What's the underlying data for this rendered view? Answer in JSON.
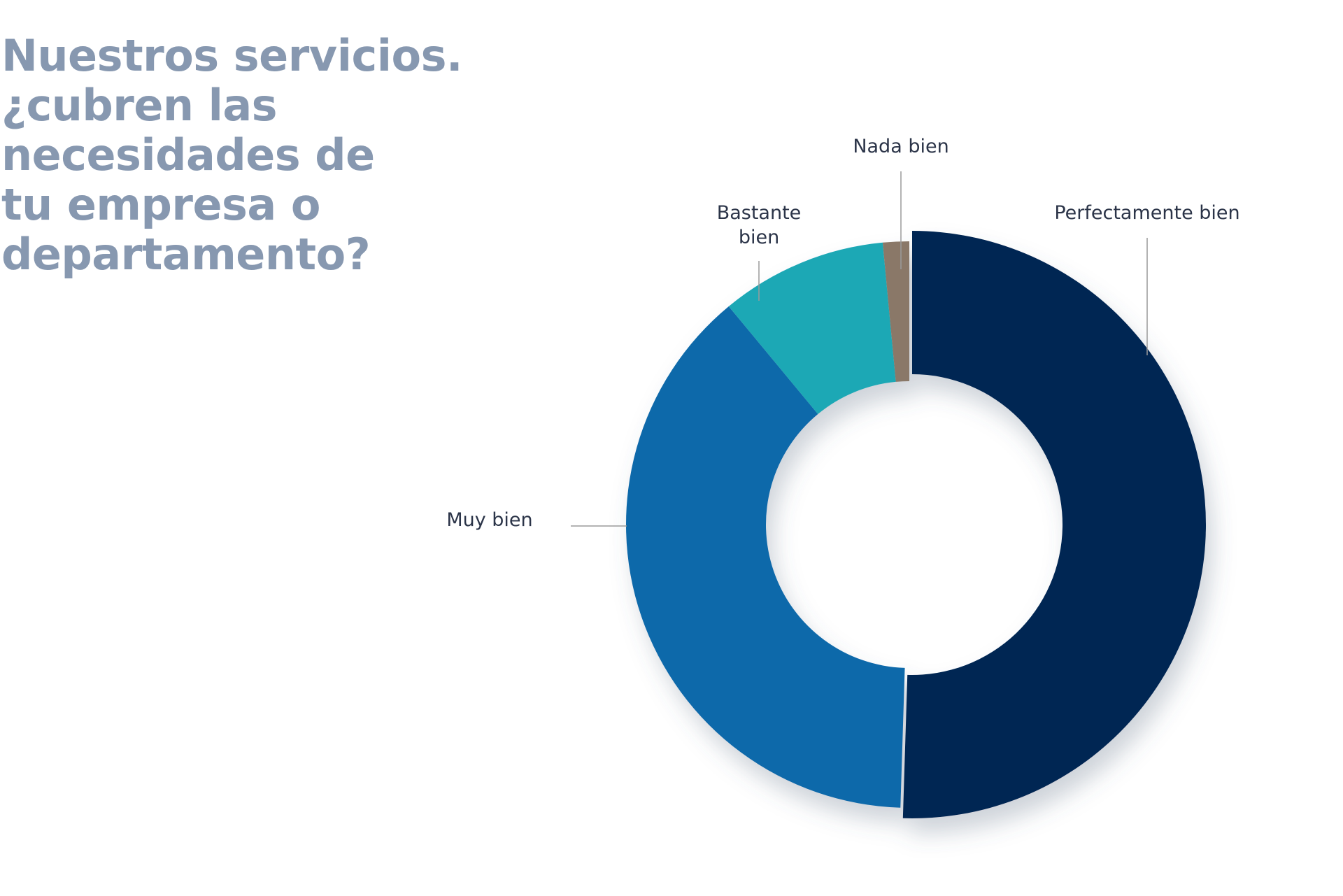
{
  "title_lines": [
    "Nuestros servicios.",
    "¿cubren las",
    "necesidades de",
    "tu empresa o",
    "departamento?"
  ],
  "chart_data": {
    "type": "pie",
    "variant": "donut",
    "slices": [
      {
        "label": "Perfectamente bien",
        "label_lines": [
          "Perfectamente bien"
        ],
        "value": 50.5,
        "color": "#032553",
        "exploded": true
      },
      {
        "label": "Muy bien",
        "label_lines": [
          "Muy bien"
        ],
        "value": 38.5,
        "color": "#0f69aa",
        "exploded": false
      },
      {
        "label": "Bastante bien",
        "label_lines": [
          "Bastante",
          "bien"
        ],
        "value": 9.5,
        "color": "#1da8b5",
        "exploded": false
      },
      {
        "label": "Nada bien",
        "label_lines": [
          "Nada bien"
        ],
        "value": 1.5,
        "color": "#8a7868",
        "exploded": false
      }
    ]
  }
}
